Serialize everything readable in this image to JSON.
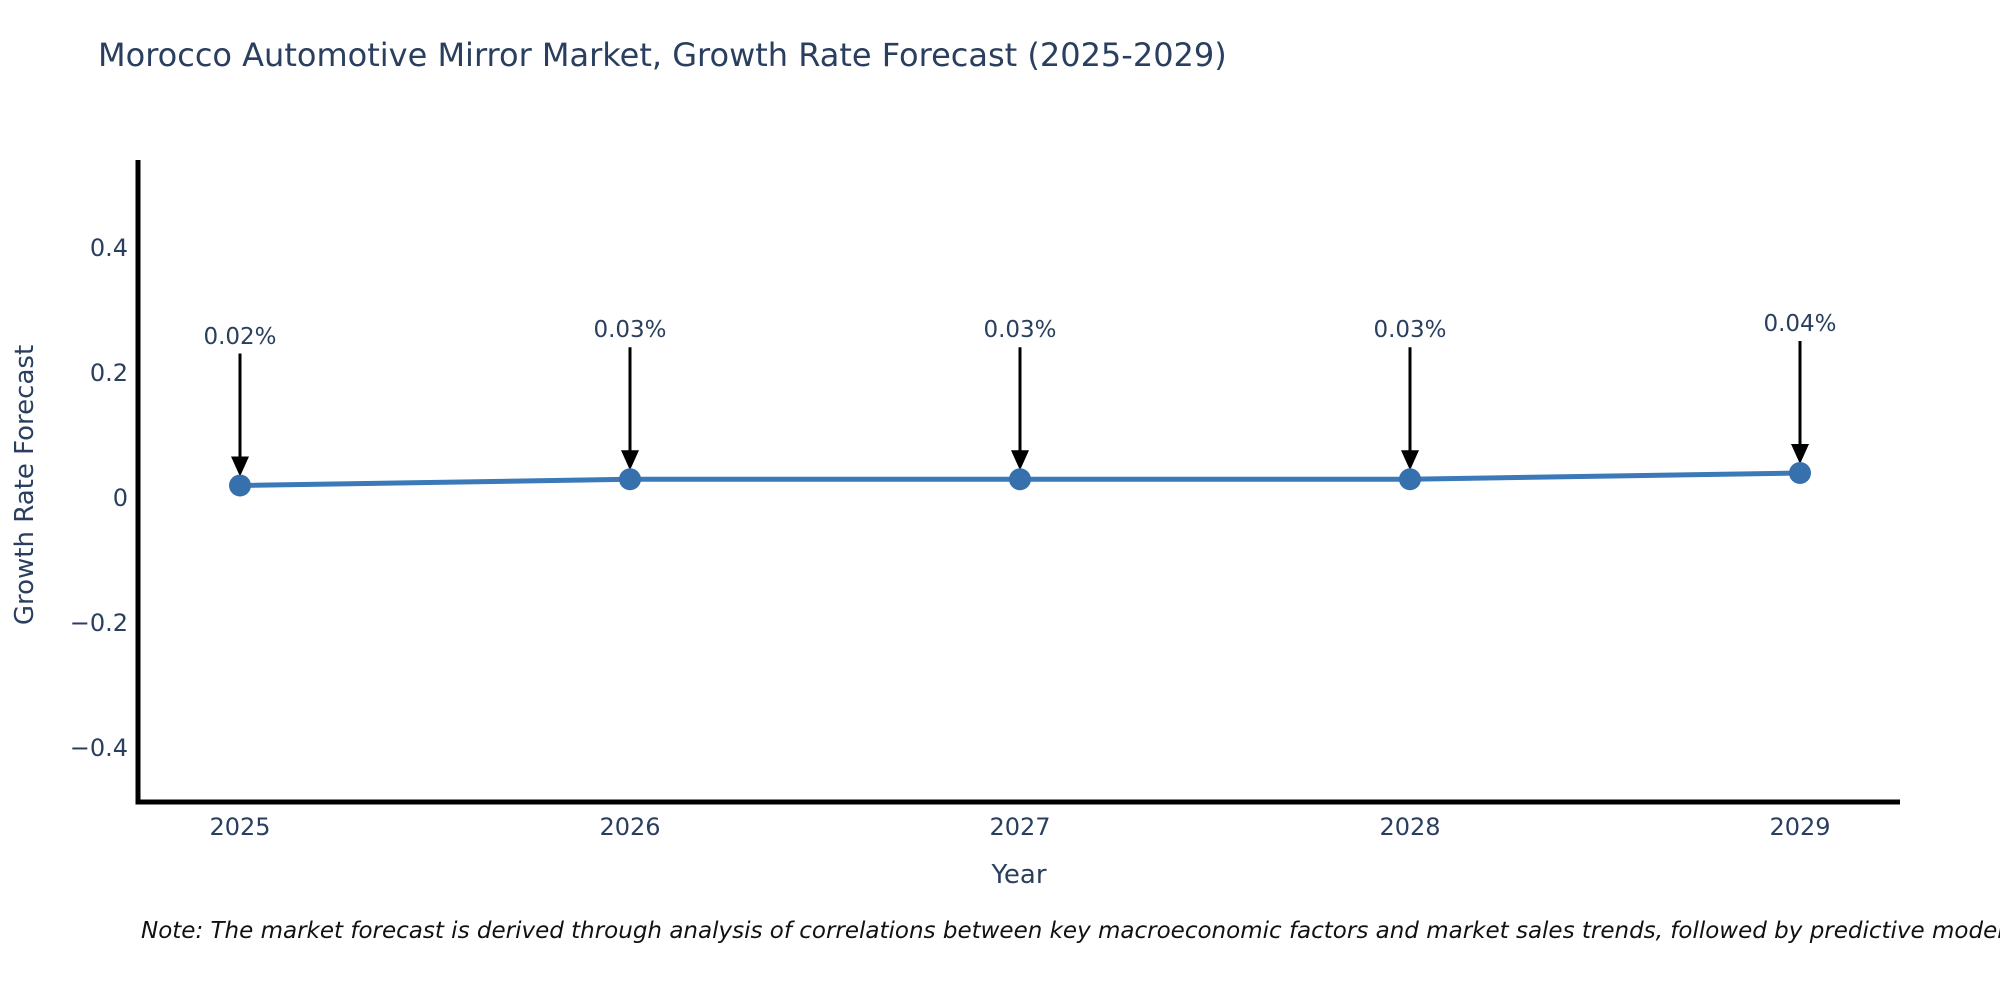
{
  "chart_data": {
    "type": "line",
    "title": "Morocco Automotive Mirror Market, Growth Rate Forecast (2025-2029)",
    "xlabel": "Year",
    "ylabel": "Growth Rate Forecast",
    "x": [
      2025,
      2026,
      2027,
      2028,
      2029
    ],
    "series": [
      {
        "name": "Growth Rate Forecast",
        "values": [
          0.02,
          0.03,
          0.03,
          0.03,
          0.04
        ]
      }
    ],
    "point_labels": [
      "0.02%",
      "0.03%",
      "0.03%",
      "0.03%",
      "0.04%"
    ],
    "xticks": [
      "2025",
      "2026",
      "2027",
      "2028",
      "2029"
    ],
    "yticks": {
      "values": [
        0.4,
        0.2,
        0,
        -0.2,
        -0.4
      ],
      "labels": [
        "0.4",
        "0.2",
        "0",
        "−0.2",
        "−0.4"
      ]
    },
    "ylim": [
      -0.54,
      0.55
    ],
    "grid": false,
    "legend": false,
    "colors": {
      "line": "#3c79b8",
      "marker": "#3671ae",
      "axis": "#000000",
      "arrow": "#000000",
      "text": "#2a3f5f"
    }
  },
  "note": "Note: The market forecast is derived through analysis of correlations between key macroeconomic factors and market sales trends, followed by predictive modeling to project future sales"
}
